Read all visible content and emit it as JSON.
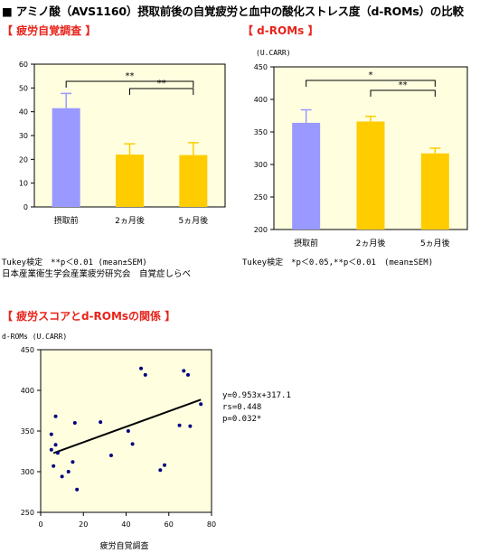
{
  "page": {
    "title_bullet": "■",
    "title": "アミノ酸（AVS1160）摂取前後の自覚疲労と血中の酸化ストレス度（d-ROMs）の比較",
    "sections": {
      "fatigue": "【 疲労自覚調査 】",
      "droms": "【 d-ROMs 】",
      "relation": "【 疲労スコアとd-ROMsの関係 】"
    },
    "notes": {
      "left_tukey": "Tukey検定　**p＜0.01 (mean±SEM)",
      "left_source": "日本産業衛生学会産業疲労研究会　自覚症しらべ",
      "right_tukey": "Tukey検定　*p＜0.05,**p＜0.01　(mean±SEM)"
    },
    "colors": {
      "accent_red": "#e8231b",
      "plot_bg": "#ffffe0",
      "bar_before": "#9999ff",
      "bar_after": "#ffcc00",
      "error_before": "#9999ff",
      "error_after": "#ffcc00",
      "scatter_point": "#000080"
    }
  },
  "chart_data": [
    {
      "type": "bar",
      "id": "fatigue",
      "categories": [
        "摂取前",
        "2ヵ月後",
        "5ヵ月後"
      ],
      "values": [
        41.5,
        22,
        21.8
      ],
      "errors": [
        6.2,
        4.5,
        5.2
      ],
      "ylim": [
        0,
        60
      ],
      "yticks": [
        0,
        10,
        20,
        30,
        40,
        50,
        60
      ],
      "ylabel": "",
      "significance": [
        {
          "from": 0,
          "to": 2,
          "label": "**"
        },
        {
          "from": 1,
          "to": 2,
          "label": "**"
        }
      ],
      "grid": false
    },
    {
      "type": "bar",
      "id": "droms",
      "categories": [
        "摂取前",
        "2ヵ月後",
        "5ヵ月後"
      ],
      "values": [
        364,
        366,
        317
      ],
      "errors": [
        20,
        8,
        8
      ],
      "ylim": [
        200,
        450
      ],
      "yticks": [
        200,
        250,
        300,
        350,
        400,
        450
      ],
      "ylabel": "(U.CARR)",
      "significance": [
        {
          "from": 0,
          "to": 2,
          "label": "*"
        },
        {
          "from": 1,
          "to": 2,
          "label": "**"
        }
      ],
      "grid": false
    },
    {
      "type": "scatter",
      "id": "relation",
      "xlabel": "疲労自覚調査",
      "ylabel": "d-ROMs (U.CARR)",
      "xlim": [
        0,
        80
      ],
      "ylim": [
        250,
        450
      ],
      "xticks": [
        0,
        20,
        40,
        60,
        80
      ],
      "yticks": [
        250,
        300,
        350,
        400,
        450
      ],
      "points": [
        [
          5,
          346
        ],
        [
          5,
          327
        ],
        [
          6,
          307
        ],
        [
          7,
          368
        ],
        [
          7,
          333
        ],
        [
          8,
          323
        ],
        [
          10,
          294
        ],
        [
          13,
          300
        ],
        [
          15,
          312
        ],
        [
          16,
          360
        ],
        [
          17,
          278
        ],
        [
          28,
          361
        ],
        [
          33,
          320
        ],
        [
          41,
          350
        ],
        [
          43,
          334
        ],
        [
          47,
          427
        ],
        [
          49,
          419
        ],
        [
          56,
          302
        ],
        [
          58,
          308
        ],
        [
          65,
          357
        ],
        [
          67,
          424
        ],
        [
          69,
          419
        ],
        [
          70,
          356
        ],
        [
          75,
          383
        ]
      ],
      "fit": {
        "slope": 0.953,
        "intercept": 317.1,
        "x_range": [
          6,
          75
        ]
      },
      "annotations": [
        "y=0.953x+317.1",
        "rs=0.448",
        "p=0.032*"
      ],
      "grid": false
    }
  ]
}
